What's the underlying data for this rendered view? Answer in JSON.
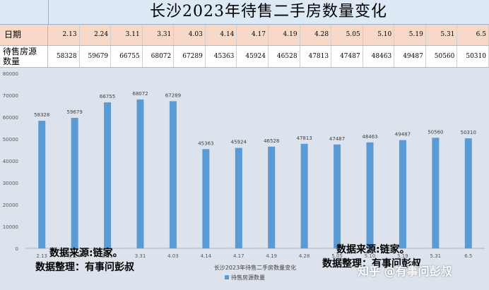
{
  "title": "长沙2023年待售二手房数量变化",
  "table": {
    "row1_header": "日期",
    "row2_header": "待售房源数量",
    "dates": [
      "2.13",
      "2.24",
      "3.11",
      "3.31",
      "4.03",
      "4.14",
      "4.17",
      "4.19",
      "4.28",
      "5.05",
      "5.10",
      "5.19",
      "5.31",
      "6.5"
    ],
    "counts": [
      "58328",
      "59679",
      "66755",
      "68072",
      "67289",
      "45363",
      "45924",
      "46528",
      "47813",
      "47487",
      "48463",
      "49487",
      "50560",
      "50310"
    ]
  },
  "annotations": {
    "source_line1": "数据来源:链家。",
    "source_line2": "数据整理：有事问彭叔",
    "source2_line1": "数据来源:链家。",
    "source2_line2": "数据整理：有事问彭叔"
  },
  "watermark": "知乎 @有事问彭叔",
  "colors": {
    "bar": "#5b9bd5",
    "title_bg": "#dde9f5",
    "date_row_bg": "#f8d9c7",
    "plot_bg": "#dce3ec"
  },
  "chart_data": {
    "type": "bar",
    "title": "",
    "xlabel": "长沙2023年待售二手房数量变化",
    "ylabel": "",
    "categories": [
      "2.13",
      "2.24",
      "3.11",
      "3.31",
      "4.03",
      "4.14",
      "4.17",
      "4.19",
      "4.28",
      "5.05",
      "5.10",
      "5.19",
      "5.31",
      "6.5"
    ],
    "series": [
      {
        "name": "待售房源数量",
        "values": [
          58328,
          59679,
          66755,
          68072,
          67289,
          45363,
          45924,
          46528,
          47813,
          47487,
          48463,
          49487,
          50560,
          50310
        ]
      }
    ],
    "ylim": [
      0,
      80000
    ],
    "yticks": [
      "0",
      "10000",
      "20000",
      "30000",
      "40000",
      "50000",
      "60000",
      "70000",
      "80000"
    ],
    "grid": false,
    "legend_position": "bottom"
  }
}
